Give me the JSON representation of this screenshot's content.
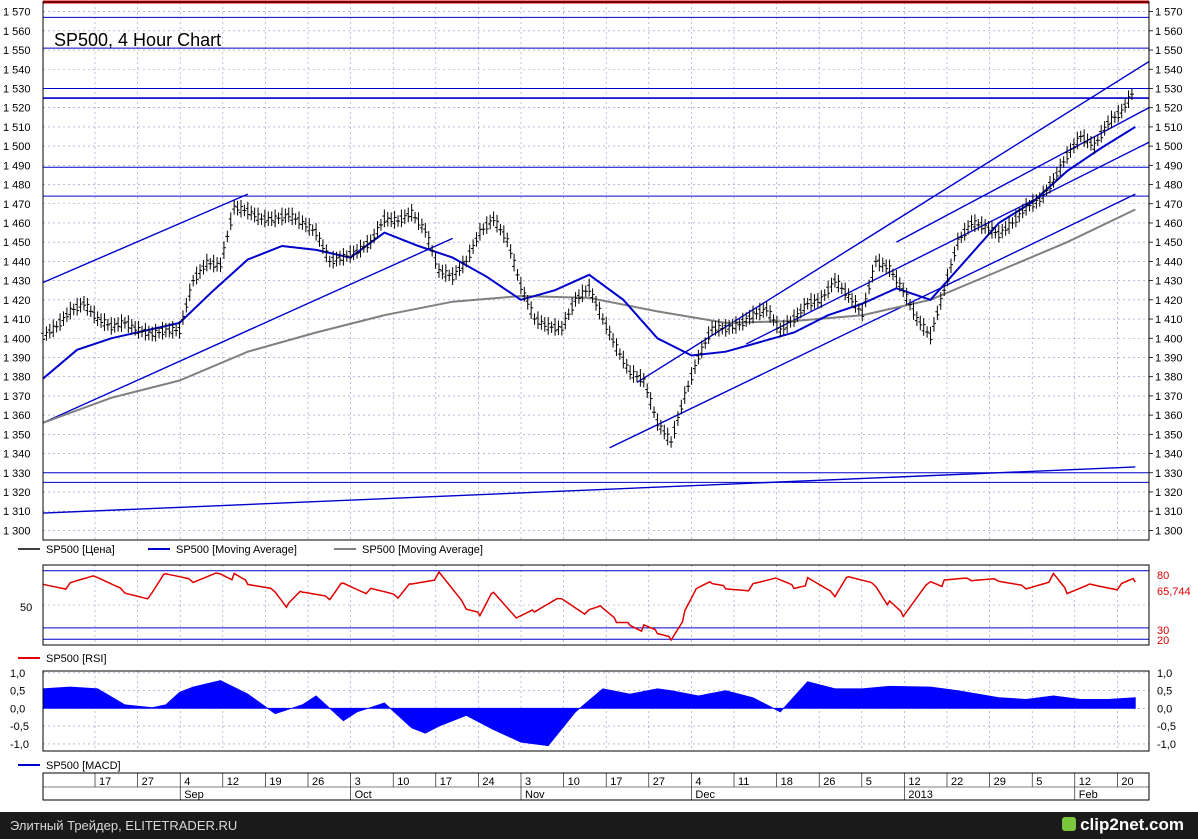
{
  "chart_data": [
    {
      "type": "line",
      "title": "SP500, 4 Hour Chart",
      "ylim": [
        1295,
        1575
      ],
      "y_ticks": [
        1300,
        1310,
        1320,
        1330,
        1340,
        1350,
        1360,
        1370,
        1380,
        1390,
        1400,
        1410,
        1420,
        1430,
        1440,
        1450,
        1460,
        1470,
        1480,
        1490,
        1500,
        1510,
        1520,
        1530,
        1540,
        1550,
        1560,
        1570
      ],
      "y_tick_labels": [
        "1 300",
        "1 310",
        "1 320",
        "1 330",
        "1 340",
        "1 350",
        "1 360",
        "1 370",
        "1 380",
        "1 390",
        "1 400",
        "1 410",
        "1 420",
        "1 430",
        "1 440",
        "1 450",
        "1 460",
        "1 470",
        "1 480",
        "1 490",
        "1 500",
        "1 510",
        "1 520",
        "1 530",
        "1 540",
        "1 550",
        "1 560",
        "1 570"
      ],
      "horizontal_levels": [
        1575,
        1567,
        1551,
        1530,
        1525,
        1489,
        1474,
        1330,
        1325
      ],
      "horizontal_level_colors": [
        "#e00000",
        "#0000cc",
        "#0000cc",
        "#0000cc",
        "#0000cc",
        "#0000cc",
        "#0000cc",
        "#0000cc",
        "#0000cc"
      ],
      "series": [
        {
          "name": "SP500 [Цена]",
          "color": "#000000",
          "x": [
            0,
            2,
            4,
            6,
            8,
            10,
            12,
            14,
            16,
            18,
            20,
            22,
            24,
            26,
            28,
            30,
            32,
            34,
            36,
            38,
            40,
            42,
            44,
            46,
            48,
            50,
            52,
            54,
            56,
            58,
            60,
            62,
            64,
            66,
            68,
            70,
            72,
            74,
            76,
            78,
            80,
            82,
            84,
            86,
            88,
            90,
            92,
            94,
            96,
            98,
            100,
            102,
            104,
            106,
            108,
            110,
            112,
            114,
            116,
            118,
            120,
            122,
            124,
            126,
            128,
            130,
            132,
            134,
            136,
            138,
            140,
            142,
            144,
            146,
            148,
            150,
            152,
            154,
            156,
            158,
            160
          ],
          "values": [
            1401,
            1406,
            1414,
            1418,
            1410,
            1406,
            1408,
            1404,
            1402,
            1404,
            1404,
            1430,
            1439,
            1438,
            1468,
            1466,
            1462,
            1462,
            1464,
            1460,
            1455,
            1440,
            1442,
            1445,
            1450,
            1462,
            1461,
            1465,
            1456,
            1435,
            1432,
            1440,
            1455,
            1462,
            1451,
            1427,
            1410,
            1406,
            1405,
            1420,
            1426,
            1410,
            1395,
            1382,
            1378,
            1356,
            1346,
            1370,
            1390,
            1405,
            1405,
            1407,
            1412,
            1415,
            1404,
            1410,
            1418,
            1420,
            1430,
            1422,
            1413,
            1440,
            1436,
            1425,
            1410,
            1401,
            1425,
            1450,
            1460,
            1458,
            1454,
            1460,
            1468,
            1472,
            1482,
            1495,
            1505,
            1500,
            1512,
            1518,
            1530
          ]
        },
        {
          "name": "SP500 [Moving Average]",
          "color": "#0000cc",
          "x": [
            0,
            5,
            10,
            15,
            20,
            25,
            30,
            35,
            40,
            45,
            50,
            55,
            60,
            65,
            70,
            75,
            80,
            85,
            90,
            95,
            100,
            105,
            110,
            115,
            120,
            125,
            130,
            135,
            140,
            145,
            150,
            155,
            160
          ],
          "values": [
            1379,
            1394,
            1400,
            1404,
            1408,
            1425,
            1441,
            1448,
            1446,
            1442,
            1455,
            1448,
            1442,
            1432,
            1420,
            1425,
            1433,
            1420,
            1400,
            1391,
            1393,
            1398,
            1403,
            1412,
            1418,
            1426,
            1420,
            1440,
            1460,
            1471,
            1487,
            1499,
            1510
          ]
        },
        {
          "name": "SP500 [Moving Average]",
          "color": "#808080",
          "x": [
            0,
            10,
            20,
            30,
            40,
            50,
            60,
            70,
            80,
            90,
            100,
            110,
            120,
            130,
            140,
            150,
            160
          ],
          "values": [
            1356,
            1369,
            1378,
            1393,
            1403,
            1412,
            1419,
            1422,
            1421,
            1414,
            1408,
            1409,
            1412,
            1420,
            1435,
            1450,
            1467
          ]
        }
      ],
      "trendlines": [
        {
          "x": [
            0,
            30
          ],
          "y": [
            1429,
            1475
          ],
          "color": "#0000cc"
        },
        {
          "x": [
            0,
            60
          ],
          "y": [
            1356,
            1452
          ],
          "color": "#0000cc"
        },
        {
          "x": [
            0,
            160
          ],
          "y": [
            1309,
            1333
          ],
          "color": "#0000cc"
        },
        {
          "x": [
            83,
            160
          ],
          "y": [
            1343,
            1475
          ],
          "color": "#0000cc"
        },
        {
          "x": [
            87,
            162
          ],
          "y": [
            1377,
            1544
          ],
          "color": "#0000cc"
        },
        {
          "x": [
            103,
            162
          ],
          "y": [
            1397,
            1502
          ],
          "color": "#0000cc"
        },
        {
          "x": [
            125,
            162
          ],
          "y": [
            1450,
            1520
          ],
          "color": "#0000cc"
        }
      ],
      "legend": [
        "SP500 [Цена]",
        "SP500 [Moving Average]",
        "SP500 [Moving Average]"
      ]
    },
    {
      "type": "line",
      "title": "",
      "ylim": [
        15,
        85
      ],
      "levels": [
        80,
        30,
        20
      ],
      "level_labels": [
        "80",
        "30",
        "20"
      ],
      "tick_labels": [
        "50"
      ],
      "current_value": "65,744",
      "series": [
        {
          "name": "SP500 [RSI]",
          "color": "#e00000",
          "x": [
            0,
            4,
            8,
            12,
            16,
            18,
            22,
            26,
            28,
            30,
            34,
            36,
            38,
            42,
            44,
            48,
            52,
            54,
            58,
            62,
            64,
            66,
            70,
            72,
            76,
            80,
            82,
            84,
            86,
            88,
            90,
            92,
            94,
            96,
            98,
            100,
            104,
            108,
            110,
            112,
            116,
            118,
            122,
            124,
            126,
            130,
            132,
            136,
            140,
            144,
            148,
            150,
            154,
            158,
            160
          ],
          "values": [
            72,
            67,
            74,
            63,
            57,
            76,
            71,
            81,
            75,
            68,
            64,
            48,
            60,
            56,
            73,
            62,
            56,
            71,
            75,
            45,
            42,
            65,
            38,
            44,
            58,
            42,
            46,
            36,
            36,
            30,
            25,
            22,
            41,
            64,
            70,
            68,
            66,
            72,
            67,
            70,
            56,
            76,
            70,
            51,
            40,
            73,
            68,
            70,
            72,
            68,
            75,
            60,
            70,
            65,
            70
          ]
        }
      ]
    },
    {
      "type": "area",
      "title": "",
      "ylim": [
        -1.2,
        1.05
      ],
      "tick_labels": [
        "1,0",
        "0,5",
        "0,0",
        "-0,5",
        "-1,0"
      ],
      "tick_values": [
        1.0,
        0.5,
        0.0,
        -0.5,
        -1.0
      ],
      "series": [
        {
          "name": "SP500 [MACD]",
          "color": "#0000ff",
          "x": [
            0,
            4,
            8,
            12,
            16,
            18,
            20,
            22,
            26,
            30,
            34,
            38,
            40,
            44,
            46,
            50,
            54,
            56,
            58,
            62,
            66,
            70,
            74,
            78,
            82,
            86,
            90,
            92,
            96,
            100,
            104,
            108,
            112,
            116,
            120,
            124,
            130,
            134,
            140,
            144,
            148,
            152,
            156,
            160
          ],
          "values": [
            0.55,
            0.6,
            0.55,
            0.1,
            0.02,
            0.1,
            0.45,
            0.6,
            0.78,
            0.4,
            -0.15,
            0.1,
            0.35,
            -0.35,
            -0.1,
            0.15,
            -0.55,
            -0.7,
            -0.5,
            -0.2,
            -0.6,
            -0.95,
            -1.05,
            -0.1,
            0.55,
            0.4,
            0.55,
            0.5,
            0.35,
            0.5,
            0.3,
            -0.1,
            0.75,
            0.55,
            0.55,
            0.62,
            0.6,
            0.5,
            0.3,
            0.25,
            0.35,
            0.25,
            0.25,
            0.3
          ]
        }
      ]
    }
  ],
  "x_axis": {
    "day_labels": [
      "17",
      "27",
      "4",
      "12",
      "19",
      "26",
      "3",
      "10",
      "17",
      "24",
      "3",
      "10",
      "17",
      "27",
      "4",
      "11",
      "18",
      "26",
      "5",
      "12",
      "22",
      "29",
      "5",
      "12",
      "20"
    ],
    "month_labels": [
      "Sep",
      "Oct",
      "Nov",
      "Dec",
      "2013",
      "Feb"
    ]
  },
  "legend": {
    "price": "SP500 [Цена]",
    "ma_blue": "SP500 [Moving Average]",
    "ma_gray": "SP500 [Moving Average]",
    "rsi": "SP500 [RSI]",
    "macd": "SP500 [MACD]"
  },
  "footer": {
    "text": "Элитный Трейдер, ELITETRADER.RU",
    "logo": "clip2net.com"
  }
}
